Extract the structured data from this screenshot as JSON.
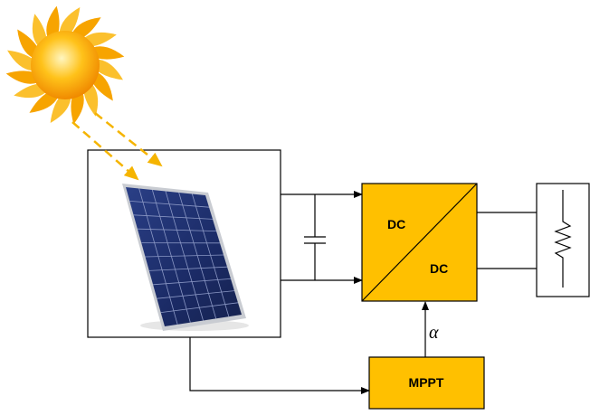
{
  "blocks": {
    "converter": {
      "input": "DC",
      "output": "DC"
    },
    "controller": "MPPT",
    "duty_cycle": "α"
  }
}
